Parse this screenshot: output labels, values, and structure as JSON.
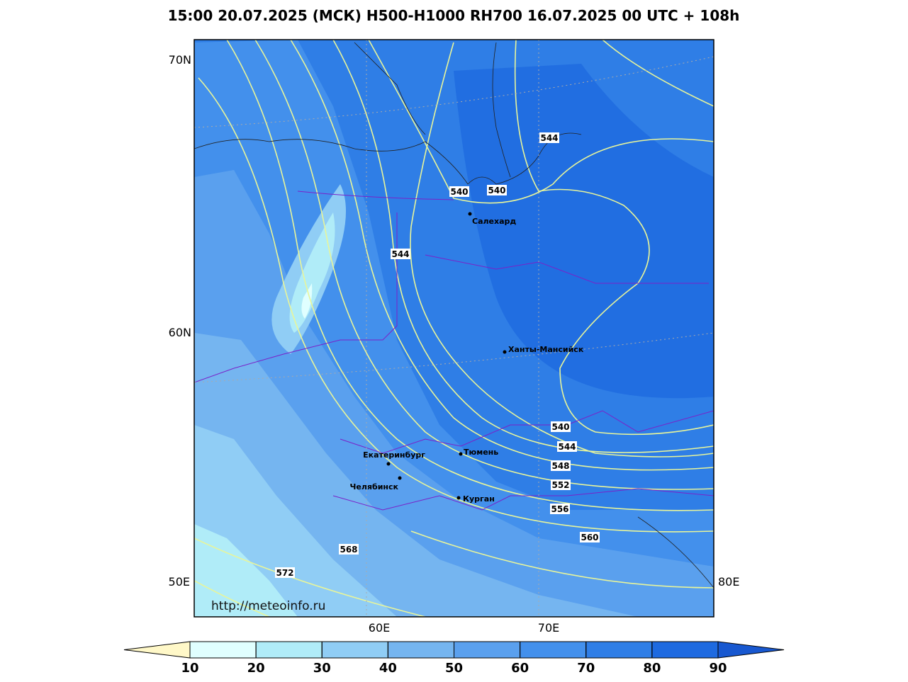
{
  "title": "15:00 20.07.2025 (МСК) H500-H1000 RH700 16.07.2025 00 UTC + 108h",
  "axis_labels": [
    "70N",
    "60N",
    "50E",
    "60E",
    "70E",
    "80E"
  ],
  "contour_labels": [
    "544",
    "540",
    "540",
    "544",
    "540",
    "544",
    "548",
    "552",
    "556",
    "560",
    "568",
    "572"
  ],
  "cities": [
    "Салехард",
    "Ханты-Мансийск",
    "Тюмень",
    "Екатеринбург",
    "Челябинск",
    "Курган"
  ],
  "source_url": "http://meteoinfo.ru",
  "colorbar": {
    "ticks": [
      10,
      20,
      30,
      40,
      50,
      60,
      70,
      80,
      90
    ],
    "colors": [
      "#fff8c8",
      "#e0ffff",
      "#b0ecf8",
      "#90cdf5",
      "#75b5f0",
      "#5aa0ee",
      "#4390ec",
      "#2f7ee6",
      "#1e6ae0",
      "#1858d0"
    ]
  }
}
